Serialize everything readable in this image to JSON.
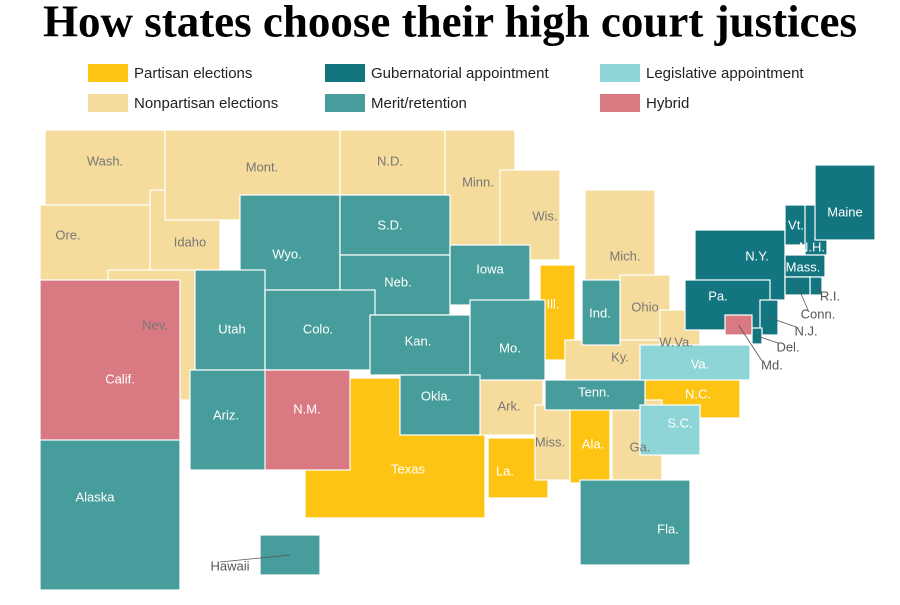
{
  "title": "How states choose their high court justices",
  "legend": [
    {
      "label": "Partisan elections",
      "color": "#fdc414",
      "states": [
        "Ill.",
        "Texas",
        "La.",
        "Ala.",
        "N.C."
      ]
    },
    {
      "label": "Nonpartisan elections",
      "color": "#f6dc9c",
      "states": [
        "Wash.",
        "Ore.",
        "Idaho",
        "Mont.",
        "Nev.",
        "N.D.",
        "Minn.",
        "Wis.",
        "Mich.",
        "Ohio",
        "Ky.",
        "W.Va.",
        "Ark.",
        "Miss.",
        "Ga."
      ]
    },
    {
      "label": "Gubernatorial appointment",
      "color": "#137580",
      "states": [
        "N.Y.",
        "Pa.",
        "Vt.",
        "N.H.",
        "Maine",
        "Mass.",
        "R.I.",
        "Conn.",
        "N.J.",
        "Del."
      ]
    },
    {
      "label": "Merit/retention",
      "color": "#469d9b",
      "states": [
        "Wyo.",
        "S.D.",
        "Neb.",
        "Iowa",
        "Utah",
        "Colo.",
        "Kan.",
        "Mo.",
        "Okla.",
        "Ariz.",
        "Ind.",
        "Tenn.",
        "Fla.",
        "Alaska",
        "Hawaii"
      ]
    },
    {
      "label": "Legislative appointment",
      "color": "#8ed5d8",
      "states": [
        "Va.",
        "S.C."
      ]
    },
    {
      "label": "Hybrid",
      "color": "#d97a82",
      "states": [
        "Calif.",
        "N.M.",
        "Md."
      ]
    }
  ]
}
